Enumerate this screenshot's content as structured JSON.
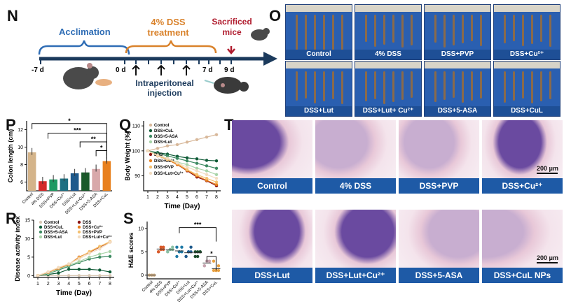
{
  "panels": {
    "N": "N",
    "O": "O",
    "P": "P",
    "Q": "Q",
    "R": "R",
    "S": "S",
    "T": "T"
  },
  "timeline": {
    "acclimation": "Acclimation",
    "dss_line1": "4% DSS",
    "dss_line2": "treatment",
    "sacrificed_line1": "Sacrificed",
    "sacrificed_line2": "mice",
    "ticks": {
      "start": "-7 d",
      "zero": "0 d",
      "seven": "7 d",
      "nine": "9 d"
    },
    "injection_line1": "Intraperitoneal",
    "injection_line2": "injection",
    "colors": {
      "acclimation": "#2f6db5",
      "dss": "#d9822b",
      "sacrificed": "#b01c2e",
      "axis": "#1b3a5c"
    }
  },
  "colon_photos": [
    "Control",
    "4% DSS",
    "DSS+PVP",
    "DSS+Cu²⁺",
    "DSS+Lut",
    "DSS+Lut+ Cu²⁺",
    "DSS+5-ASA",
    "DSS+CuL"
  ],
  "histology": {
    "labels": [
      "Control",
      "4% DSS",
      "DSS+PVP",
      "DSS+Cu²⁺",
      "DSS+Lut",
      "DSS+Lut+Cu²⁺",
      "DSS+5-ASA",
      "DSS+CuL NPs"
    ],
    "scale": "200 μm"
  },
  "chart_data": [
    {
      "id": "P",
      "type": "bar",
      "ylabel": "Colon length (cm)",
      "ylim": [
        5,
        13
      ],
      "yticks": [
        6,
        8,
        10,
        12
      ],
      "categories": [
        "Control",
        "4% DSS",
        "DSS+PVP",
        "DSS+Cu²⁺",
        "DSS+Lut",
        "DSS+Lut+Cu²⁺",
        "DSS+5-ASA",
        "DSS+CuL"
      ],
      "values": [
        9.4,
        6.1,
        6.3,
        6.4,
        7.0,
        7.1,
        7.5,
        8.4
      ],
      "colors": [
        "#d4b48a",
        "#d42a2a",
        "#1f9a62",
        "#1f7082",
        "#1f5a8c",
        "#1a5a2a",
        "#d8a8aa",
        "#e8801e"
      ],
      "significance": [
        "*",
        "***",
        "**",
        "*"
      ]
    },
    {
      "id": "Q",
      "type": "line",
      "xlabel": "Time (Day)",
      "ylabel": "Body Weight (%)",
      "ylim": [
        84,
        112
      ],
      "yticks": [
        90,
        100,
        110
      ],
      "x": [
        1,
        2,
        3,
        4,
        5,
        6,
        7,
        8
      ],
      "series": [
        {
          "name": "Control",
          "color": "#d8b89a",
          "values": [
            100,
            101,
            102,
            102.5,
            103.5,
            104.5,
            105.5,
            106.5
          ]
        },
        {
          "name": "DSS+CuL",
          "color": "#0e5a36",
          "values": [
            100,
            99.3,
            98.7,
            97.8,
            97.2,
            96.8,
            96.2,
            96
          ]
        },
        {
          "name": "DSS+5-ASA",
          "color": "#3d8a62",
          "values": [
            100,
            99,
            98,
            97,
            96,
            95,
            94,
            93
          ]
        },
        {
          "name": "DSS+Lut",
          "color": "#a8d4a8",
          "values": [
            100,
            98.5,
            97,
            95.5,
            94.5,
            93,
            92,
            90.5
          ]
        },
        {
          "name": "DSS",
          "color": "#8a1010",
          "values": [
            100,
            98,
            96.5,
            94.5,
            92,
            89.5,
            88,
            86
          ]
        },
        {
          "name": "DSS+Cu²⁺",
          "color": "#e8801e",
          "values": [
            100,
            98,
            96.5,
            94.5,
            92.2,
            90,
            88.2,
            86.5
          ]
        },
        {
          "name": "DSS+PVP",
          "color": "#f4c070",
          "values": [
            100,
            98,
            96.5,
            95,
            92.5,
            90.5,
            89,
            87.5
          ]
        },
        {
          "name": "DSS+Lut+Cu²⁺",
          "color": "#f3dcc0",
          "values": [
            100,
            98.2,
            97,
            95.2,
            93.5,
            92,
            90.5,
            89
          ]
        }
      ]
    },
    {
      "id": "R",
      "type": "line",
      "xlabel": "Time (Day)",
      "ylabel": "Disease activity index",
      "ylim": [
        -0.5,
        15
      ],
      "yticks": [
        0,
        5,
        10,
        15
      ],
      "x": [
        1,
        2,
        3,
        4,
        5,
        6,
        7,
        8
      ],
      "series": [
        {
          "name": "Control",
          "color": "#d8c8b4",
          "values": [
            0,
            0,
            0,
            0,
            0,
            0,
            0,
            0
          ]
        },
        {
          "name": "DSS+CuL",
          "color": "#0e5a36",
          "values": [
            0,
            0.3,
            0.7,
            1.7,
            1.7,
            1.7,
            1.5,
            1.0
          ]
        },
        {
          "name": "DSS+5-ASA",
          "color": "#3d8a62",
          "values": [
            0,
            0.5,
            1.5,
            2.5,
            3.5,
            4.5,
            5,
            5.2
          ]
        },
        {
          "name": "DSS+Lut",
          "color": "#a8d4a8",
          "values": [
            0,
            0.6,
            1.7,
            2.8,
            3.8,
            5,
            5.8,
            6.5
          ]
        },
        {
          "name": "DSS",
          "color": "#8a1010",
          "values": [
            0,
            0.9,
            2,
            3,
            5,
            6.3,
            7.7,
            9.1
          ]
        },
        {
          "name": "DSS+Cu²⁺",
          "color": "#e8801e",
          "values": [
            0,
            0.9,
            2,
            3,
            5,
            6.3,
            7.8,
            9.1
          ]
        },
        {
          "name": "DSS+PVP",
          "color": "#f4c070",
          "values": [
            0,
            1,
            2.1,
            3.1,
            4.8,
            6.5,
            7.9,
            9.2
          ]
        },
        {
          "name": "DSS+Lut+Cu²⁺",
          "color": "#f3dcc0",
          "values": [
            0,
            1,
            2.2,
            3.2,
            4.5,
            6,
            7.2,
            9
          ]
        }
      ]
    },
    {
      "id": "S",
      "type": "scatter",
      "ylabel": "H&E scores",
      "ylim": [
        -0.8,
        11.5
      ],
      "yticks": [
        0,
        5,
        10
      ],
      "categories": [
        "Control",
        "4% DSS",
        "DSS+PVP",
        "DSS+Cu²⁺",
        "DSS+Lut",
        "DSS+Lut+Cu²⁺",
        "DSS+5-ASA",
        "DSS+CuL"
      ],
      "points": [
        [
          0,
          0,
          0,
          0,
          0,
          0
        ],
        [
          5,
          5.5,
          6,
          5,
          6,
          5.5
        ],
        [
          5,
          5.5,
          6,
          5,
          5.5,
          5.5
        ],
        [
          4,
          5,
          6,
          6,
          5,
          5
        ],
        [
          4,
          5,
          6,
          4,
          5,
          5
        ],
        [
          4,
          5,
          5,
          5,
          4,
          5
        ],
        [
          2,
          3,
          3,
          2,
          3,
          3
        ],
        [
          1,
          1,
          2,
          3,
          1,
          1
        ]
      ],
      "means": [
        0,
        5.6,
        5.4,
        5.2,
        4.8,
        4.8,
        2.6,
        1.4
      ],
      "colors": [
        "#d4b48a",
        "#d85a2a",
        "#8ac0a4",
        "#1f7aa6",
        "#1f5a8c",
        "#1a4a2a",
        "#c8a4b0",
        "#e8a040"
      ],
      "significance": [
        "***",
        "*"
      ]
    }
  ]
}
